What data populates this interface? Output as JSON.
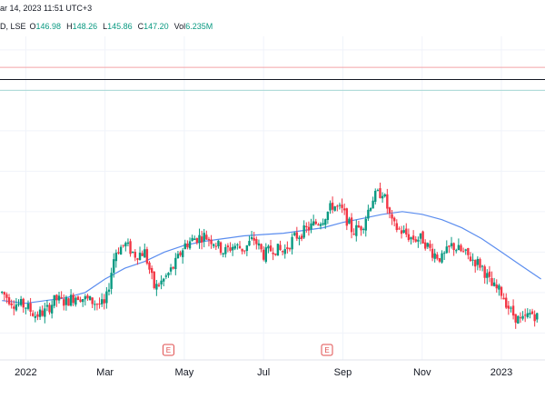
{
  "header": {
    "date_text": "ar 14, 2023 11:51 UTC+3",
    "symbol_text": "D, LSE",
    "ohlc": [
      {
        "label": "O",
        "value": "146.98"
      },
      {
        "label": "H",
        "value": "148.26"
      },
      {
        "label": "L",
        "value": "145.86"
      },
      {
        "label": "C",
        "value": "147.20"
      },
      {
        "label": "Vol",
        "value": "6.235M"
      }
    ]
  },
  "colors": {
    "up": "#089981",
    "down": "#f23645",
    "ma": "#5b8def",
    "grid": "#f0f3fa",
    "hline_red": "#f4a3a8",
    "hline_black": "#131722",
    "hline_teal": "#a6d8d4"
  },
  "events": [
    {
      "label": "E",
      "icon": "earnings-icon",
      "month_index": 3.6
    },
    {
      "label": "E",
      "icon": "earnings-icon",
      "month_index": 7.6
    }
  ],
  "chart_data": {
    "type": "candlestick",
    "title": "",
    "x_tick_labels": [
      "2022",
      "Mar",
      "May",
      "Jul",
      "Sep",
      "Nov",
      "2023"
    ],
    "x_tick_month_index": [
      0,
      2,
      4,
      6,
      8,
      10,
      12
    ],
    "x_range_months": [
      -0.65,
      13.1
    ],
    "y_range": [
      136,
      160
    ],
    "horizontal_lines": [
      {
        "value": 157.7,
        "color": "hline_red"
      },
      {
        "value": 156.8,
        "color": "hline_black"
      },
      {
        "value": 156.0,
        "color": "hline_teal"
      }
    ],
    "price_path": [
      [
        -0.6,
        141.0
      ],
      [
        -0.3,
        140.2
      ],
      [
        0.0,
        140.0
      ],
      [
        0.25,
        139.3
      ],
      [
        0.5,
        139.6
      ],
      [
        0.75,
        140.5
      ],
      [
        1.0,
        140.3
      ],
      [
        1.3,
        140.8
      ],
      [
        1.5,
        140.5
      ],
      [
        1.8,
        140.2
      ],
      [
        2.0,
        140.0
      ],
      [
        2.25,
        144.0
      ],
      [
        2.5,
        144.6
      ],
      [
        2.75,
        143.8
      ],
      [
        3.0,
        144.0
      ],
      [
        3.25,
        141.3
      ],
      [
        3.5,
        142.0
      ],
      [
        3.75,
        143.0
      ],
      [
        4.0,
        144.5
      ],
      [
        4.25,
        145.0
      ],
      [
        4.5,
        145.2
      ],
      [
        4.75,
        144.8
      ],
      [
        5.0,
        144.0
      ],
      [
        5.25,
        144.5
      ],
      [
        5.5,
        144.2
      ],
      [
        5.75,
        145.0
      ],
      [
        6.0,
        143.8
      ],
      [
        6.25,
        144.3
      ],
      [
        6.5,
        144.0
      ],
      [
        6.75,
        145.0
      ],
      [
        7.0,
        145.5
      ],
      [
        7.25,
        146.0
      ],
      [
        7.5,
        146.5
      ],
      [
        7.75,
        147.5
      ],
      [
        8.0,
        147.0
      ],
      [
        8.25,
        145.5
      ],
      [
        8.5,
        146.0
      ],
      [
        8.75,
        148.0
      ],
      [
        9.0,
        148.5
      ],
      [
        9.25,
        146.0
      ],
      [
        9.5,
        145.5
      ],
      [
        9.75,
        145.0
      ],
      [
        10.0,
        145.0
      ],
      [
        10.25,
        144.0
      ],
      [
        10.5,
        143.5
      ],
      [
        10.75,
        144.5
      ],
      [
        11.0,
        144.0
      ],
      [
        11.25,
        143.5
      ],
      [
        11.5,
        143.0
      ],
      [
        11.75,
        141.5
      ],
      [
        12.0,
        141.0
      ],
      [
        12.25,
        139.5
      ],
      [
        12.5,
        138.8
      ],
      [
        12.75,
        139.5
      ],
      [
        13.0,
        139.0
      ]
    ],
    "ma_path": [
      [
        -0.6,
        140.4
      ],
      [
        0.0,
        140.2
      ],
      [
        0.5,
        140.4
      ],
      [
        1.0,
        140.6
      ],
      [
        1.5,
        141.0
      ],
      [
        2.0,
        142.0
      ],
      [
        2.5,
        142.8
      ],
      [
        3.0,
        143.3
      ],
      [
        3.5,
        144.0
      ],
      [
        4.0,
        144.5
      ],
      [
        4.5,
        144.8
      ],
      [
        5.0,
        145.0
      ],
      [
        5.5,
        145.2
      ],
      [
        6.0,
        145.3
      ],
      [
        6.5,
        145.4
      ],
      [
        7.0,
        145.6
      ],
      [
        7.5,
        145.8
      ],
      [
        8.0,
        146.2
      ],
      [
        8.5,
        146.5
      ],
      [
        9.0,
        146.8
      ],
      [
        9.5,
        147.0
      ],
      [
        10.0,
        146.8
      ],
      [
        10.5,
        146.4
      ],
      [
        11.0,
        145.8
      ],
      [
        11.5,
        145.0
      ],
      [
        12.0,
        144.0
      ],
      [
        12.5,
        143.0
      ],
      [
        13.0,
        142.0
      ]
    ]
  }
}
